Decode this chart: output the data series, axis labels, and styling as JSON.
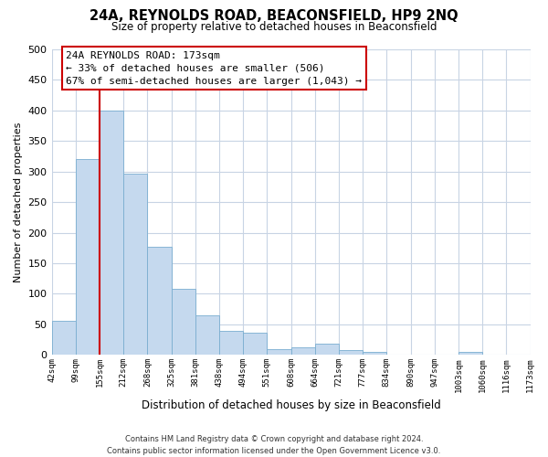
{
  "title": "24A, REYNOLDS ROAD, BEACONSFIELD, HP9 2NQ",
  "subtitle": "Size of property relative to detached houses in Beaconsfield",
  "xlabel": "Distribution of detached houses by size in Beaconsfield",
  "ylabel": "Number of detached properties",
  "bar_values": [
    55,
    320,
    400,
    297,
    177,
    108,
    65,
    40,
    37,
    10,
    13,
    18,
    8,
    5,
    0,
    0,
    0,
    5,
    0,
    0
  ],
  "x_labels": [
    "42sqm",
    "99sqm",
    "155sqm",
    "212sqm",
    "268sqm",
    "325sqm",
    "381sqm",
    "438sqm",
    "494sqm",
    "551sqm",
    "608sqm",
    "664sqm",
    "721sqm",
    "777sqm",
    "834sqm",
    "890sqm",
    "947sqm",
    "1003sqm",
    "1060sqm",
    "1116sqm",
    "1173sqm"
  ],
  "bar_color": "#c5d9ee",
  "bar_edge_color": "#7aaed0",
  "vline_color": "#cc0000",
  "ylim": [
    0,
    500
  ],
  "yticks": [
    0,
    50,
    100,
    150,
    200,
    250,
    300,
    350,
    400,
    450,
    500
  ],
  "annotation_title": "24A REYNOLDS ROAD: 173sqm",
  "annotation_line1": "← 33% of detached houses are smaller (506)",
  "annotation_line2": "67% of semi-detached houses are larger (1,043) →",
  "annotation_box_color": "#ffffff",
  "annotation_box_edge": "#cc0000",
  "footer_line1": "Contains HM Land Registry data © Crown copyright and database right 2024.",
  "footer_line2": "Contains public sector information licensed under the Open Government Licence v3.0.",
  "background_color": "#ffffff",
  "grid_color": "#c8d4e4"
}
